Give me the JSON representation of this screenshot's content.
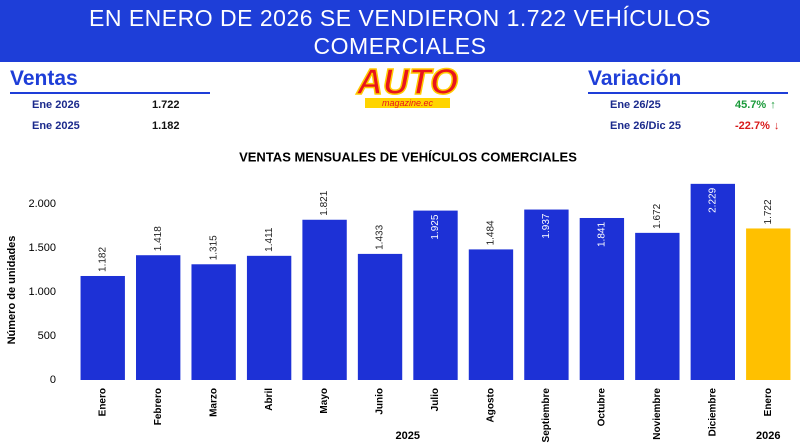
{
  "header": {
    "title": "EN ENERO DE 2026 SE VENDIERON 1.722 VEHÍCULOS COMERCIALES"
  },
  "ventas": {
    "title": "Ventas",
    "rows": [
      [
        "Ene 2026",
        "1.722"
      ],
      [
        "Ene 2025",
        "1.182"
      ]
    ]
  },
  "logo": {
    "name": "AUTO",
    "sub": "magazine.ec"
  },
  "variacion": {
    "title": "Variación",
    "rows": [
      [
        "Ene 26/25",
        "45.7%"
      ],
      [
        "Ene 26/Dic 25",
        "-22.7%"
      ]
    ]
  },
  "chart_data": {
    "type": "bar",
    "title": "VENTAS MENSUALES DE VEHÍCULOS COMERCIALES",
    "y_label": "Número de unidades",
    "categories": [
      "Enero",
      "Febrero",
      "Marzo",
      "Abril",
      "Mayo",
      "Junio",
      "Julio",
      "Agosto",
      "Septiembre",
      "Octubre",
      "Noviembre",
      "Diciembre",
      "Enero"
    ],
    "years": [
      "2025",
      "2025",
      "2025",
      "2025",
      "2025",
      "2025",
      "2025",
      "2025",
      "2025",
      "2025",
      "2025",
      "2025",
      "2026"
    ],
    "values": [
      1182,
      1418,
      1315,
      1411,
      1821,
      1433,
      1925,
      1484,
      1937,
      1841,
      1672,
      2229,
      1722
    ],
    "value_labels": [
      "1.182",
      "1.418",
      "1.315",
      "1.411",
      "1.821",
      "1.433",
      "1.925",
      "1.484",
      "1.937",
      "1.841",
      "1.672",
      "2.229",
      "1.722"
    ],
    "colors": [
      "#1d31d6",
      "#1d31d6",
      "#1d31d6",
      "#1d31d6",
      "#1d31d6",
      "#1d31d6",
      "#1d31d6",
      "#1d31d6",
      "#1d31d6",
      "#1d31d6",
      "#1d31d6",
      "#1d31d6",
      "#ffc000"
    ],
    "ylim": [
      0,
      2250
    ],
    "yticks": [
      0,
      500,
      {
        "value": 1000,
        "label": "1.000"
      },
      {
        "value": 1500,
        "label": "1.500"
      },
      {
        "value": 2000,
        "label": "2.000"
      }
    ],
    "grid": false
  }
}
